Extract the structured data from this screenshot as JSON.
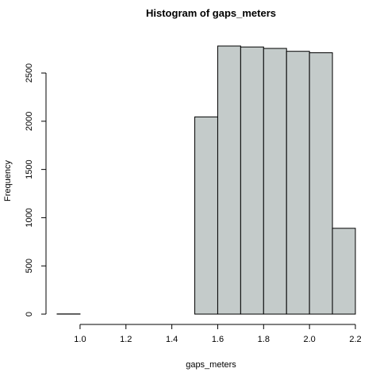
{
  "chart_data": {
    "type": "bar",
    "title": "Histogram of gaps_meters",
    "xlabel": "gaps_meters",
    "ylabel": "Frequency",
    "bar_color": "#c4cbca",
    "bins": [
      {
        "start": 0.9,
        "end": 1.0,
        "count": 2
      },
      {
        "start": 1.0,
        "end": 1.1,
        "count": 0
      },
      {
        "start": 1.1,
        "end": 1.2,
        "count": 0
      },
      {
        "start": 1.2,
        "end": 1.3,
        "count": 0
      },
      {
        "start": 1.3,
        "end": 1.4,
        "count": 0
      },
      {
        "start": 1.4,
        "end": 1.5,
        "count": 0
      },
      {
        "start": 1.5,
        "end": 1.6,
        "count": 2045
      },
      {
        "start": 1.6,
        "end": 1.7,
        "count": 2780
      },
      {
        "start": 1.7,
        "end": 1.8,
        "count": 2770
      },
      {
        "start": 1.8,
        "end": 1.9,
        "count": 2755
      },
      {
        "start": 1.9,
        "end": 2.0,
        "count": 2725
      },
      {
        "start": 2.0,
        "end": 2.1,
        "count": 2710
      },
      {
        "start": 2.1,
        "end": 2.2,
        "count": 890
      }
    ],
    "xticks": [
      1.0,
      1.2,
      1.4,
      1.6,
      1.8,
      2.0,
      2.2
    ],
    "xtick_labels": [
      "1.0",
      "1.2",
      "1.4",
      "1.6",
      "1.8",
      "2.0",
      "2.2"
    ],
    "yticks": [
      0,
      500,
      1000,
      1500,
      2000,
      2500
    ],
    "ytick_labels": [
      "0",
      "500",
      "1000",
      "1500",
      "2000",
      "2500"
    ],
    "xlim": [
      0.9,
      2.2
    ],
    "ylim": [
      0,
      2780
    ],
    "grid": false
  }
}
